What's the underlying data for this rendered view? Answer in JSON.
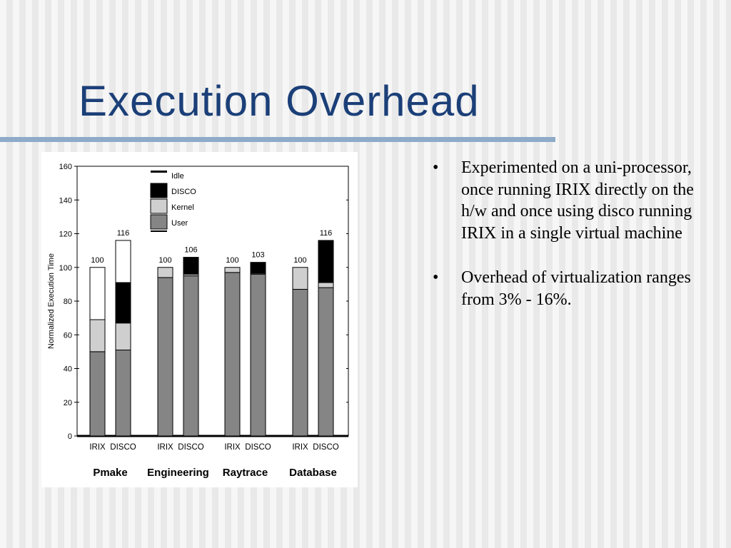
{
  "slide": {
    "title": "Execution Overhead",
    "bullet_char": "•",
    "bullets": [
      "Experimented on a uni-processor, once running IRIX directly on the h/w and once using disco running IRIX in a single virtual machine",
      "Overhead of virtualization ranges from 3% - 16%."
    ]
  },
  "chart_data": {
    "type": "bar",
    "stacked": true,
    "ylabel": "Normalized Execution Time",
    "ylim": [
      0,
      160
    ],
    "yticks": [
      0,
      20,
      40,
      60,
      80,
      100,
      120,
      140,
      160
    ],
    "groups": [
      {
        "label": "Pmake",
        "bars": [
          {
            "label": "IRIX",
            "total": 100,
            "total_label": "100",
            "segments": {
              "User": 50,
              "Kernel": 19,
              "DISCO": 0,
              "Idle": 31
            }
          },
          {
            "label": "DISCO",
            "total": 116,
            "total_label": "116",
            "segments": {
              "User": 51,
              "Kernel": 16,
              "DISCO": 24,
              "Idle": 25
            }
          }
        ]
      },
      {
        "label": "Engineering",
        "bars": [
          {
            "label": "IRIX",
            "total": 100,
            "total_label": "100",
            "segments": {
              "User": 94,
              "Kernel": 6,
              "DISCO": 0,
              "Idle": 0
            }
          },
          {
            "label": "DISCO",
            "total": 106,
            "total_label": "106",
            "segments": {
              "User": 95,
              "Kernel": 1,
              "DISCO": 10,
              "Idle": 0
            }
          }
        ]
      },
      {
        "label": "Raytrace",
        "bars": [
          {
            "label": "IRIX",
            "total": 100,
            "total_label": "100",
            "segments": {
              "User": 97,
              "Kernel": 3,
              "DISCO": 0,
              "Idle": 0
            }
          },
          {
            "label": "DISCO",
            "total": 103,
            "total_label": "103",
            "segments": {
              "User": 96,
              "Kernel": 0.5,
              "DISCO": 6.5,
              "Idle": 0
            }
          }
        ]
      },
      {
        "label": "Database",
        "bars": [
          {
            "label": "IRIX",
            "total": 100,
            "total_label": "100",
            "segments": {
              "User": 87,
              "Kernel": 13,
              "DISCO": 0,
              "Idle": 0
            }
          },
          {
            "label": "DISCO",
            "total": 116,
            "total_label": "116",
            "segments": {
              "User": 88,
              "Kernel": 3,
              "DISCO": 25,
              "Idle": 0
            }
          }
        ]
      }
    ],
    "legend": {
      "placement": "top-left",
      "items": [
        {
          "name": "Idle",
          "color": "#ffffff"
        },
        {
          "name": "DISCO",
          "color": "#000000"
        },
        {
          "name": "Kernel",
          "color": "#cfcfcf"
        },
        {
          "name": "User",
          "color": "#858585"
        }
      ]
    },
    "stack_order": [
      "User",
      "Kernel",
      "DISCO",
      "Idle"
    ]
  }
}
